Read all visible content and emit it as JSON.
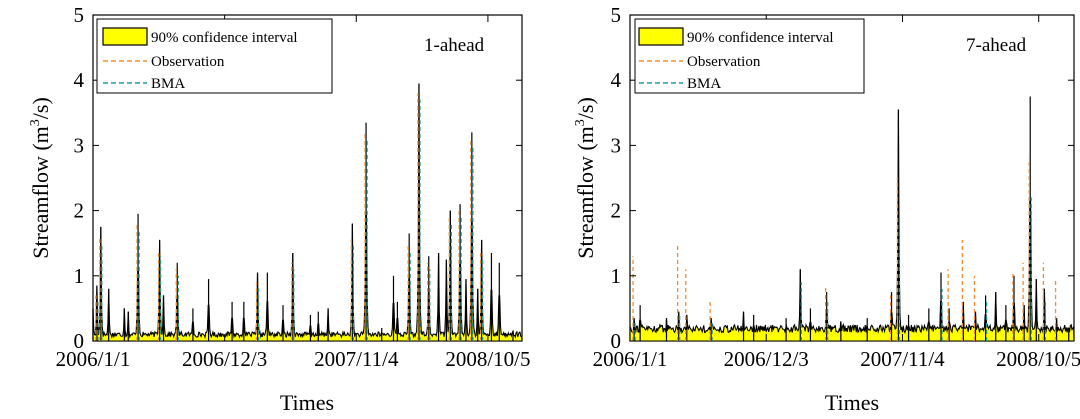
{
  "chart_data": [
    {
      "type": "area",
      "annotation": "1-ahead",
      "xlabel": "Times",
      "ylabel_main": "Streamflow (m",
      "ylabel_sup": "3",
      "ylabel_end": "/s)",
      "ylim": [
        0,
        5
      ],
      "yticks": [
        "0",
        "1",
        "2",
        "3",
        "4",
        "5"
      ],
      "xticks": [
        "2006/1/1",
        "2006/12/3",
        "2007/11/4",
        "2008/10/5"
      ],
      "legend": {
        "placement": "top-left",
        "entries": [
          "90% confidence interval",
          "Observation",
          "BMA"
        ]
      },
      "colors": {
        "interval_fill": "#ffff00",
        "interval_edge": "#000000",
        "observation": "#f28e2b",
        "bma": "#1f9e9e"
      },
      "x_axis": {
        "start": "2006/1/1",
        "end": "2008/12/31"
      },
      "series": [
        {
          "name": "90% confidence interval",
          "x": [
            "2006/1/1",
            "2006/1/11",
            "2006/1/21",
            "2006/2/10",
            "2006/3/22",
            "2006/4/1",
            "2006/4/26",
            "2006/6/20",
            "2006/6/30",
            "2006/8/4",
            "2006/9/13",
            "2006/10/23",
            "2006/12/22",
            "2007/1/21",
            "2007/2/25",
            "2007/3/22",
            "2007/5/1",
            "2007/5/26",
            "2007/7/10",
            "2007/7/30",
            "2007/8/24",
            "2007/10/25",
            "2007/11/29",
            "2008/1/8",
            "2008/2/7",
            "2008/2/17",
            "2008/3/18",
            "2008/4/12",
            "2008/5/7",
            "2008/6/1",
            "2008/6/21",
            "2008/7/1",
            "2008/7/26",
            "2008/8/10",
            "2008/8/25",
            "2008/9/9",
            "2008/9/19",
            "2008/10/14",
            "2008/11/3",
            "2008/12/8"
          ],
          "values": [
            0.5,
            0.85,
            1.75,
            0.8,
            0.5,
            0.45,
            1.95,
            1.55,
            0.7,
            1.2,
            0.5,
            0.95,
            0.6,
            0.6,
            1.05,
            1.05,
            0.55,
            1.35,
            0.4,
            0.45,
            0.5,
            1.8,
            3.35,
            0.2,
            1.0,
            0.6,
            1.65,
            3.95,
            1.3,
            1.35,
            1.25,
            2.0,
            2.1,
            0.95,
            3.2,
            0.8,
            1.55,
            1.35,
            1.2,
            0.15
          ]
        },
        {
          "name": "Observation",
          "x": [
            "2006/1/11",
            "2006/1/21",
            "2006/4/26",
            "2006/6/20",
            "2006/8/4",
            "2007/2/25",
            "2007/5/26",
            "2007/10/25",
            "2007/11/29",
            "2008/3/18",
            "2008/4/12",
            "2008/5/7",
            "2008/7/1",
            "2008/7/26",
            "2008/8/25",
            "2008/9/19"
          ],
          "values": [
            0.7,
            1.6,
            1.8,
            1.4,
            1.1,
            0.9,
            1.2,
            1.6,
            3.2,
            1.5,
            3.8,
            1.2,
            1.9,
            2.0,
            3.1,
            1.4
          ]
        },
        {
          "name": "BMA",
          "x": [
            "2006/1/11",
            "2006/1/21",
            "2006/4/26",
            "2006/6/20",
            "2006/8/4",
            "2007/2/25",
            "2007/5/26",
            "2007/10/25",
            "2007/11/29",
            "2008/3/18",
            "2008/4/12",
            "2008/5/7",
            "2008/7/1",
            "2008/7/26",
            "2008/8/25",
            "2008/9/19"
          ],
          "values": [
            0.65,
            1.5,
            1.7,
            1.3,
            1.0,
            0.85,
            1.1,
            1.5,
            3.1,
            1.4,
            3.7,
            1.1,
            1.8,
            1.9,
            3.0,
            1.3
          ]
        }
      ]
    },
    {
      "type": "area",
      "annotation": "7-ahead",
      "xlabel": "Times",
      "ylabel_main": "Streamflow (m",
      "ylabel_sup": "3",
      "ylabel_end": "/s)",
      "ylim": [
        0,
        5
      ],
      "yticks": [
        "0",
        "1",
        "2",
        "3",
        "4",
        "5"
      ],
      "xticks": [
        "2006/1/1",
        "2006/12/3",
        "2007/11/4",
        "2008/10/5"
      ],
      "legend": {
        "placement": "top-left",
        "entries": [
          "90% confidence interval",
          "Observation",
          "BMA"
        ]
      },
      "colors": {
        "interval_fill": "#ffff00",
        "interval_edge": "#000000",
        "observation": "#f28e2b",
        "bma": "#1f9e9e"
      },
      "x_axis": {
        "start": "2006/1/1",
        "end": "2008/12/31"
      },
      "series": [
        {
          "name": "90% confidence interval",
          "x": [
            "2006/1/11",
            "2006/1/26",
            "2006/4/1",
            "2006/5/1",
            "2006/5/21",
            "2006/7/20",
            "2006/10/8",
            "2006/11/2",
            "2007/1/21",
            "2007/2/25",
            "2007/3/22",
            "2007/5/1",
            "2007/6/5",
            "2007/8/9",
            "2007/10/8",
            "2007/10/25",
            "2007/11/19",
            "2008/1/8",
            "2008/2/7",
            "2008/2/27",
            "2008/4/2",
            "2008/5/2",
            "2008/5/27",
            "2008/6/21",
            "2008/7/16",
            "2008/8/5",
            "2008/8/30",
            "2008/9/14",
            "2008/9/29",
            "2008/10/19",
            "2008/11/18",
            "2008/12/18"
          ],
          "values": [
            0.35,
            0.55,
            0.35,
            0.45,
            0.4,
            0.35,
            0.45,
            0.4,
            0.35,
            1.1,
            0.5,
            0.75,
            0.3,
            0.35,
            0.75,
            3.55,
            0.4,
            0.5,
            1.05,
            0.5,
            0.6,
            0.45,
            0.7,
            0.75,
            0.55,
            1.0,
            0.55,
            3.75,
            0.95,
            0.8,
            0.35,
            0.2
          ]
        },
        {
          "name": "Observation",
          "x": [
            "2006/1/11",
            "2006/5/1",
            "2006/5/21",
            "2006/7/20",
            "2007/5/1",
            "2007/10/8",
            "2007/10/25",
            "2008/2/27",
            "2008/4/2",
            "2008/5/2",
            "2008/8/5",
            "2008/8/30",
            "2008/9/14",
            "2008/10/19",
            "2008/11/18"
          ],
          "values": [
            1.3,
            1.5,
            1.1,
            0.6,
            0.85,
            0.7,
            2.5,
            1.1,
            1.55,
            1.0,
            1.05,
            1.2,
            2.8,
            1.2,
            0.95
          ]
        },
        {
          "name": "BMA",
          "x": [
            "2006/1/11",
            "2006/5/1",
            "2006/7/20",
            "2007/2/25",
            "2007/5/1",
            "2007/10/25",
            "2008/2/7",
            "2008/5/27",
            "2008/9/14",
            "2008/10/19"
          ],
          "values": [
            0.3,
            0.4,
            0.3,
            0.9,
            0.6,
            1.9,
            0.8,
            0.6,
            2.2,
            0.6
          ]
        }
      ]
    }
  ]
}
